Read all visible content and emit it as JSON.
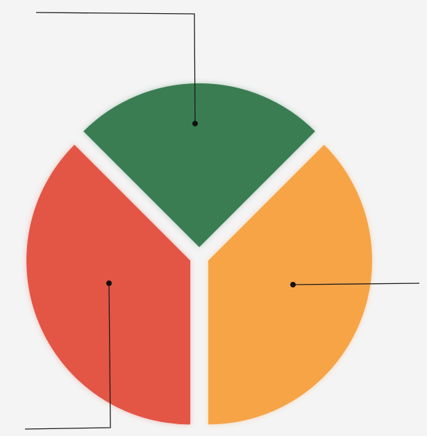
{
  "chart_data": {
    "type": "pie",
    "style": "exploded",
    "title": "",
    "legend": "none",
    "grid": false,
    "slices": [
      {
        "label": "",
        "value": 25,
        "color": "#3b7d53"
      },
      {
        "label": "",
        "value": 37.5,
        "color": "#f7a446"
      },
      {
        "label": "",
        "value": 37.5,
        "color": "#e35444"
      }
    ]
  }
}
